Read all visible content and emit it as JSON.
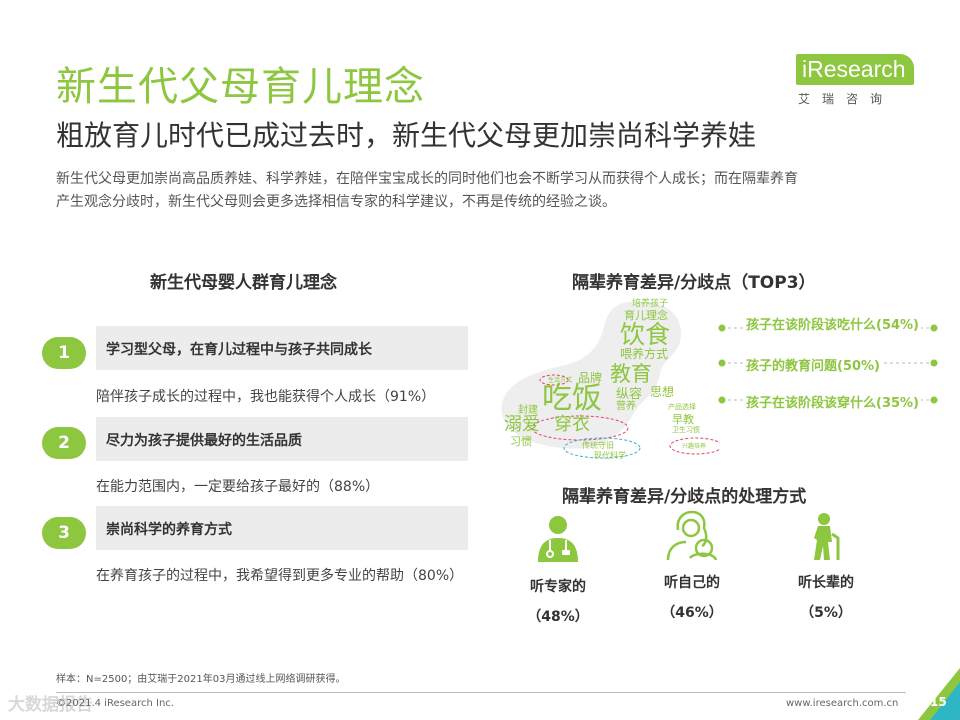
{
  "header": {
    "title": "新生代父母育儿理念",
    "subtitle": "粗放育儿时代已成过去时，新生代父母更加崇尚科学养娃",
    "intro_line1": "新生代父母更加崇尚高品质养娃、科学养娃，在陪伴宝宝成长的同时他们也会不断学习从而获得个人成长；而在隔辈养育",
    "intro_line2": "产生观念分歧时，新生代父母则会更多选择相信专家的科学建议，不再是传统的经验之谈。"
  },
  "logo": {
    "brand": "iResearch",
    "sub": "艾瑞咨询",
    "color": "#8dc63f"
  },
  "left_section": {
    "title": "新生代母婴人群育儿理念",
    "items": [
      {
        "num": "1",
        "heading": "学习型父母，在育儿过程中与孩子共同成长",
        "desc": "陪伴孩子成长的过程中，我也能获得个人成长（91%）"
      },
      {
        "num": "2",
        "heading": "尽力为孩子提供最好的生活品质",
        "desc": "在能力范围内，一定要给孩子最好的（88%）"
      },
      {
        "num": "3",
        "heading": "崇尚科学的养育方式",
        "desc": "在养育孩子的过程中，我希望得到更多专业的帮助（80%）"
      }
    ]
  },
  "right_top": {
    "title": "隔辈养育差异/分歧点（TOP3）",
    "word_cloud": [
      "培养孩子",
      "育儿理念",
      "饮食",
      "喂养方式",
      "品牌",
      "教育",
      "思想",
      "纵容",
      "营养",
      "封建",
      "吃饭",
      "溺爱",
      "穿衣",
      "习惯",
      "传统守旧",
      "现代科学",
      "产品选择",
      "早教",
      "卫生习惯",
      "兴趣培养",
      "生活方式"
    ],
    "differences": [
      "孩子在该阶段该吃什么(54%)",
      "孩子的教育问题(50%)",
      "孩子在该阶段该穿什么(35%)"
    ]
  },
  "right_bottom": {
    "title": "隔辈养育差异/分歧点的处理方式",
    "options": [
      {
        "label": "听专家的",
        "pct": "（48%）",
        "icon": "doctor-icon"
      },
      {
        "label": "听自己的",
        "pct": "（46%）",
        "icon": "mother-baby-icon"
      },
      {
        "label": "听长辈的",
        "pct": "（5%）",
        "icon": "elder-icon"
      }
    ]
  },
  "footer": {
    "note": "样本：N=2500；由艾瑞于2021年03月通过线上网络调研获得。",
    "copyright": "©2021.4 iResearch Inc.",
    "website": "www.iresearch.com.cn",
    "page": "15",
    "watermark": "大数据报告"
  }
}
